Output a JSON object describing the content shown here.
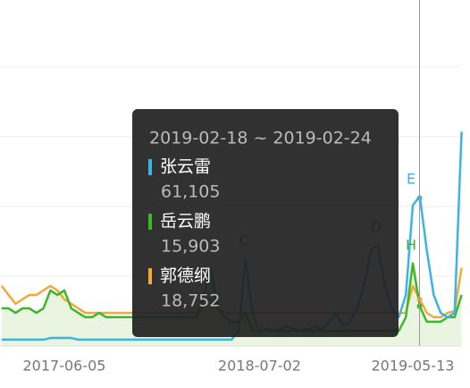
{
  "chart_data": {
    "type": "line",
    "categories": [
      null,
      null,
      null,
      null,
      null,
      null,
      null,
      null,
      null,
      "2017-06-05",
      null,
      null,
      null,
      null,
      null,
      null,
      null,
      null,
      null,
      null,
      null,
      null,
      null,
      null,
      null,
      null,
      null,
      null,
      null,
      null,
      null,
      null,
      null,
      null,
      null,
      null,
      null,
      "2018-07-02",
      null,
      null,
      null,
      null,
      null,
      null,
      null,
      null,
      null,
      null,
      null,
      null,
      null,
      null,
      null,
      null,
      null,
      null,
      null,
      null,
      null,
      "2019-05-13",
      null,
      null,
      null,
      null,
      null,
      null,
      null
    ],
    "ylim": [
      0,
      144000
    ],
    "series": [
      {
        "name": "张云雷",
        "color": "#3ab4e6",
        "values": [
          1900,
          1900,
          1900,
          1900,
          1900,
          1900,
          1900,
          2600,
          2600,
          2600,
          2600,
          1900,
          1900,
          1900,
          1900,
          1900,
          1900,
          1900,
          1900,
          1900,
          1900,
          1900,
          1900,
          1900,
          1900,
          1900,
          1900,
          1900,
          1900,
          1900,
          1900,
          1900,
          1900,
          1900,
          5600,
          35600,
          13100,
          4900,
          6400,
          5600,
          6400,
          7500,
          6400,
          5600,
          6400,
          7500,
          6400,
          9400,
          13100,
          7500,
          9400,
          15000,
          24400,
          39400,
          41300,
          24400,
          15000,
          11300,
          20600,
          58100,
          61900,
          39400,
          20600,
          13100,
          11300,
          13100,
          88900
        ]
      },
      {
        "name": "岳云鹏",
        "color": "#3cb72a",
        "values": [
          15000,
          15000,
          13100,
          15000,
          15000,
          13100,
          15000,
          22500,
          20600,
          22500,
          15000,
          13100,
          11300,
          11300,
          13100,
          11300,
          11300,
          11300,
          11300,
          11300,
          11300,
          11300,
          11300,
          11300,
          11300,
          11300,
          11300,
          11300,
          11300,
          20600,
          31900,
          15000,
          11300,
          9400,
          9400,
          13100,
          5600,
          5600,
          5600,
          5600,
          5600,
          5600,
          5600,
          5600,
          5600,
          5600,
          5600,
          5600,
          5600,
          5600,
          5600,
          5600,
          5600,
          5600,
          5600,
          5600,
          5600,
          5600,
          11300,
          33800,
          15900,
          9400,
          9400,
          9400,
          11300,
          11300,
          20600
        ]
      },
      {
        "name": "郭德纲",
        "color": "#f5a833",
        "values": [
          24400,
          20600,
          16900,
          18800,
          20600,
          20600,
          22500,
          24400,
          22500,
          18800,
          16900,
          15000,
          13100,
          13100,
          13100,
          13100,
          13100,
          13100,
          13100,
          13100,
          13100,
          13100,
          13100,
          13100,
          13100,
          13100,
          13100,
          13100,
          13100,
          16900,
          18800,
          15000,
          13100,
          13100,
          13100,
          13100,
          13100,
          13100,
          13100,
          13100,
          13100,
          13100,
          13100,
          13100,
          13100,
          13100,
          13100,
          13100,
          13100,
          13100,
          13100,
          13100,
          13100,
          13100,
          13100,
          13100,
          13100,
          13100,
          13100,
          24400,
          18800,
          13100,
          11300,
          11300,
          13100,
          13900,
          31900
        ]
      }
    ],
    "annotations": [
      {
        "label": "C",
        "color": "#2b6f9b"
      },
      {
        "label": "D",
        "color": "#2b6f9b"
      },
      {
        "label": "E",
        "color": "#3ab4e6"
      },
      {
        "label": "H",
        "color": "#3cb72a"
      }
    ],
    "tooltip": {
      "title": "2019-02-18 ~ 2019-02-24",
      "values": [
        61105,
        15903,
        18752
      ],
      "value_labels": [
        "61,105",
        "15,903",
        "18,752"
      ]
    }
  }
}
